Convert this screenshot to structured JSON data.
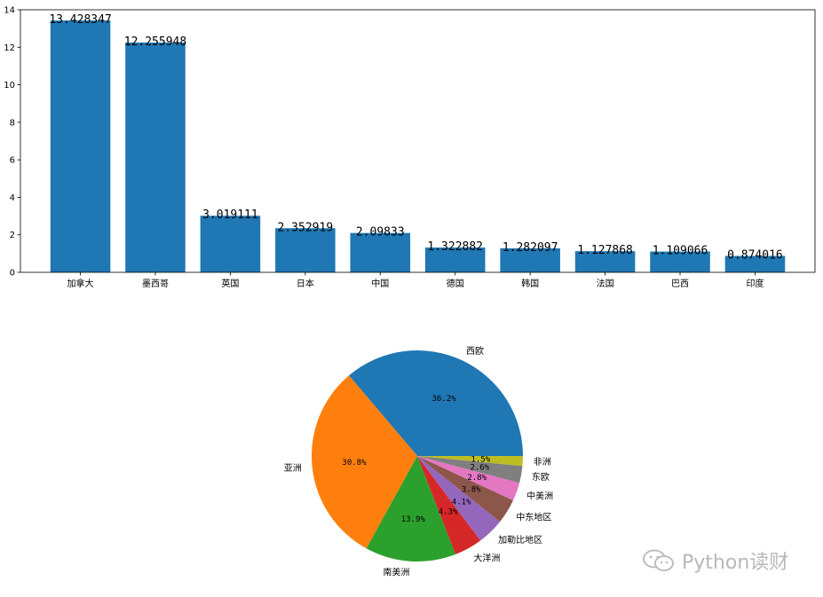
{
  "chart_data": [
    {
      "type": "bar",
      "categories": [
        "加拿大",
        "墨西哥",
        "英国",
        "日本",
        "中国",
        "德国",
        "韩国",
        "法国",
        "巴西",
        "印度"
      ],
      "values": [
        13.428347,
        12.255948,
        3.019111,
        2.352919,
        2.09833,
        1.322882,
        1.282097,
        1.127868,
        1.109066,
        0.874016
      ],
      "value_labels": [
        "13.428347",
        "12.255948",
        "3.019111",
        "2.352919",
        "2.09833",
        "1.322882",
        "1.282097",
        "1.127868",
        "1.109066",
        "0.874016"
      ],
      "ylim": [
        0,
        14
      ],
      "yticks": [
        0,
        2,
        4,
        6,
        8,
        10,
        12,
        14
      ],
      "color": "#1f77b4",
      "grid": false
    },
    {
      "type": "pie",
      "labels": [
        "西欧",
        "亚洲",
        "南美洲",
        "大洋洲",
        "加勒比地区",
        "中东地区",
        "中美洲",
        "东欧",
        "非洲"
      ],
      "values": [
        36.2,
        30.8,
        13.9,
        4.3,
        4.1,
        3.8,
        2.8,
        2.6,
        1.5
      ],
      "pct_labels": [
        "36.2%",
        "30.8%",
        "13.9%",
        "4.3%",
        "4.1%",
        "3.8%",
        "2.8%",
        "2.6%",
        "1.5%"
      ],
      "colors": [
        "#1f77b4",
        "#ff7f0e",
        "#2ca02c",
        "#d62728",
        "#9467bd",
        "#8c564b",
        "#e377c2",
        "#7f7f7f",
        "#bcbd22"
      ]
    }
  ],
  "watermark": {
    "text": "Python读财",
    "icon": "wechat-icon"
  }
}
